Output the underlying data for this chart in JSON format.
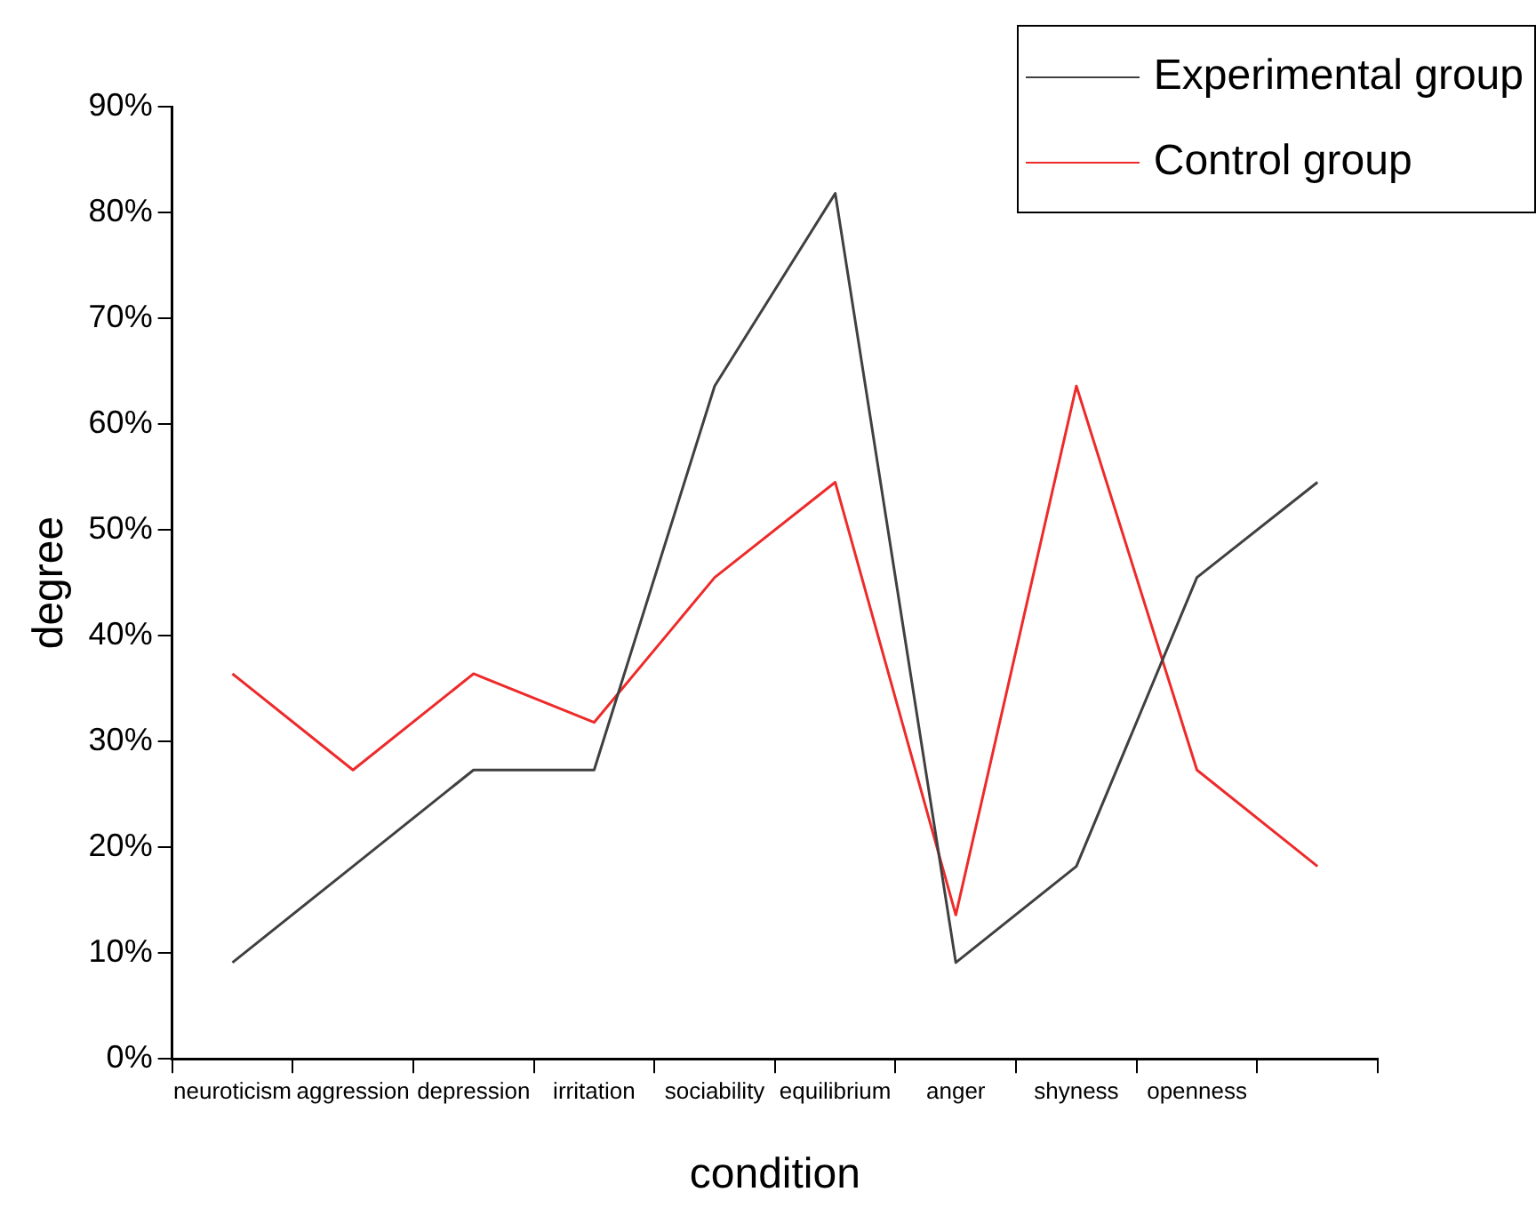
{
  "chart_data": {
    "type": "line",
    "xlabel": "condition",
    "ylabel": "degree",
    "categories": [
      "neuroticism",
      "aggression",
      "depression",
      "irritation",
      "sociability",
      "equilibrium",
      "anger",
      "shyness",
      "openness",
      null
    ],
    "series": [
      {
        "name": "Experimental group",
        "color": "#404040",
        "values": [
          9.1,
          18.2,
          27.3,
          27.3,
          63.6,
          81.8,
          9.1,
          18.2,
          45.5,
          54.5
        ]
      },
      {
        "name": "Control group",
        "color": "#ee2a2a",
        "values": [
          36.4,
          27.3,
          36.4,
          31.8,
          45.5,
          54.5,
          13.6,
          63.6,
          27.3,
          18.2
        ]
      }
    ],
    "ylim": [
      0,
      90
    ],
    "yticks": [
      {
        "value": 0,
        "label": "0%"
      },
      {
        "value": 10,
        "label": "10%"
      },
      {
        "value": 20,
        "label": "20%"
      },
      {
        "value": 30,
        "label": "30%"
      },
      {
        "value": 40,
        "label": "40%"
      },
      {
        "value": 50,
        "label": "50%"
      },
      {
        "value": 60,
        "label": "60%"
      },
      {
        "value": 70,
        "label": "70%"
      },
      {
        "value": 80,
        "label": "80%"
      },
      {
        "value": 90,
        "label": "90%"
      }
    ],
    "grid": false,
    "legend": "top right",
    "marker": "none",
    "line_style": "solid"
  }
}
